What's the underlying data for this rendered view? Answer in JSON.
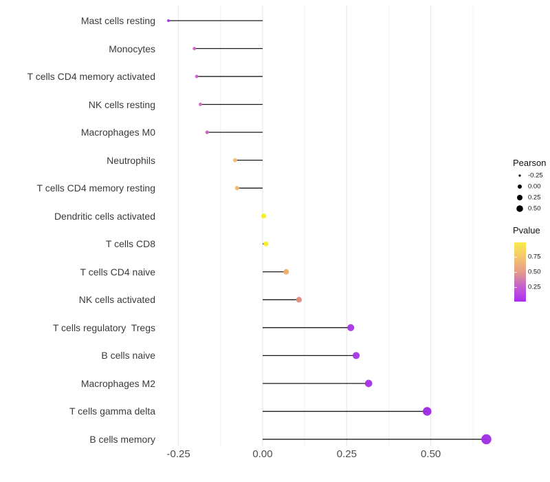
{
  "chart_data": {
    "type": "scatter",
    "subtype": "lollipop",
    "orientation": "horizontal",
    "title": "",
    "xlabel": "",
    "ylabel": "",
    "xlim": [
      -0.31,
      0.69
    ],
    "grid": "vertical-only",
    "x_ticks": [
      -0.25,
      0.0,
      0.25,
      0.5
    ],
    "x_tick_labels": [
      "-0.25",
      "0.00",
      "0.25",
      "0.50"
    ],
    "x_minor_ticks": [
      -0.125,
      0.125,
      0.375,
      0.625
    ],
    "categories": [
      "Mast cells resting",
      "Monocytes",
      "T cells CD4 memory activated",
      "NK cells resting",
      "Macrophages M0",
      "Neutrophils",
      "T cells CD4 memory resting",
      "Dendritic cells activated",
      "T cells CD8",
      "T cells CD4 naive",
      "NK cells activated",
      "T cells regulatory  Tregs",
      "B cells naive",
      "Macrophages M2",
      "T cells gamma delta",
      "B cells memory"
    ],
    "points": [
      {
        "label": "Mast cells resting",
        "pearson": -0.28,
        "color": "#a335ea"
      },
      {
        "label": "Monocytes",
        "pearson": -0.203,
        "color": "#cf63c8"
      },
      {
        "label": "T cells CD4 memory activated",
        "pearson": -0.196,
        "color": "#ce62c6"
      },
      {
        "label": "NK cells resting",
        "pearson": -0.185,
        "color": "#d36cc8"
      },
      {
        "label": "Macrophages M0",
        "pearson": -0.165,
        "color": "#cb60bd"
      },
      {
        "label": "Neutrophils",
        "pearson": -0.082,
        "color": "#f2c077"
      },
      {
        "label": "T cells CD4 memory resting",
        "pearson": -0.076,
        "color": "#f0ba70"
      },
      {
        "label": "Dendritic cells activated",
        "pearson": 0.003,
        "color": "#f8ed22"
      },
      {
        "label": "T cells CD8",
        "pearson": 0.01,
        "color": "#f8ee28"
      },
      {
        "label": "T cells CD4 naive",
        "pearson": 0.07,
        "color": "#eeac64"
      },
      {
        "label": "NK cells activated",
        "pearson": 0.108,
        "color": "#e08d7c"
      },
      {
        "label": "T cells regulatory  Tregs",
        "pearson": 0.262,
        "color": "#a636e6"
      },
      {
        "label": "B cells naive",
        "pearson": 0.278,
        "color": "#a537e5"
      },
      {
        "label": "Macrophages M2",
        "pearson": 0.315,
        "color": "#a52fe4"
      },
      {
        "label": "T cells gamma delta",
        "pearson": 0.489,
        "color": "#9c29e2"
      },
      {
        "label": "B cells memory",
        "pearson": 0.665,
        "color": "#9d2ce2"
      }
    ],
    "legend_size": {
      "title": "Pearson",
      "entries": [
        "-0.25",
        "0.00",
        "0.25",
        "0.50"
      ],
      "dot_color": "#000000"
    },
    "legend_color": {
      "title": "Pvalue",
      "tick_labels": [
        "0.75",
        "0.50",
        "0.25"
      ],
      "gradient_top_to_bottom": [
        "#f8ec4a",
        "#f3c56f",
        "#e59b89",
        "#c45fd0",
        "#ab2df2"
      ]
    },
    "style_colors": {
      "stem": "#1a1a1a",
      "grid_major": "#e3e3e3",
      "grid_minor": "#f1f1f1",
      "axis_text": "#4d4d4d",
      "category_text": "#3a3a3a"
    }
  }
}
